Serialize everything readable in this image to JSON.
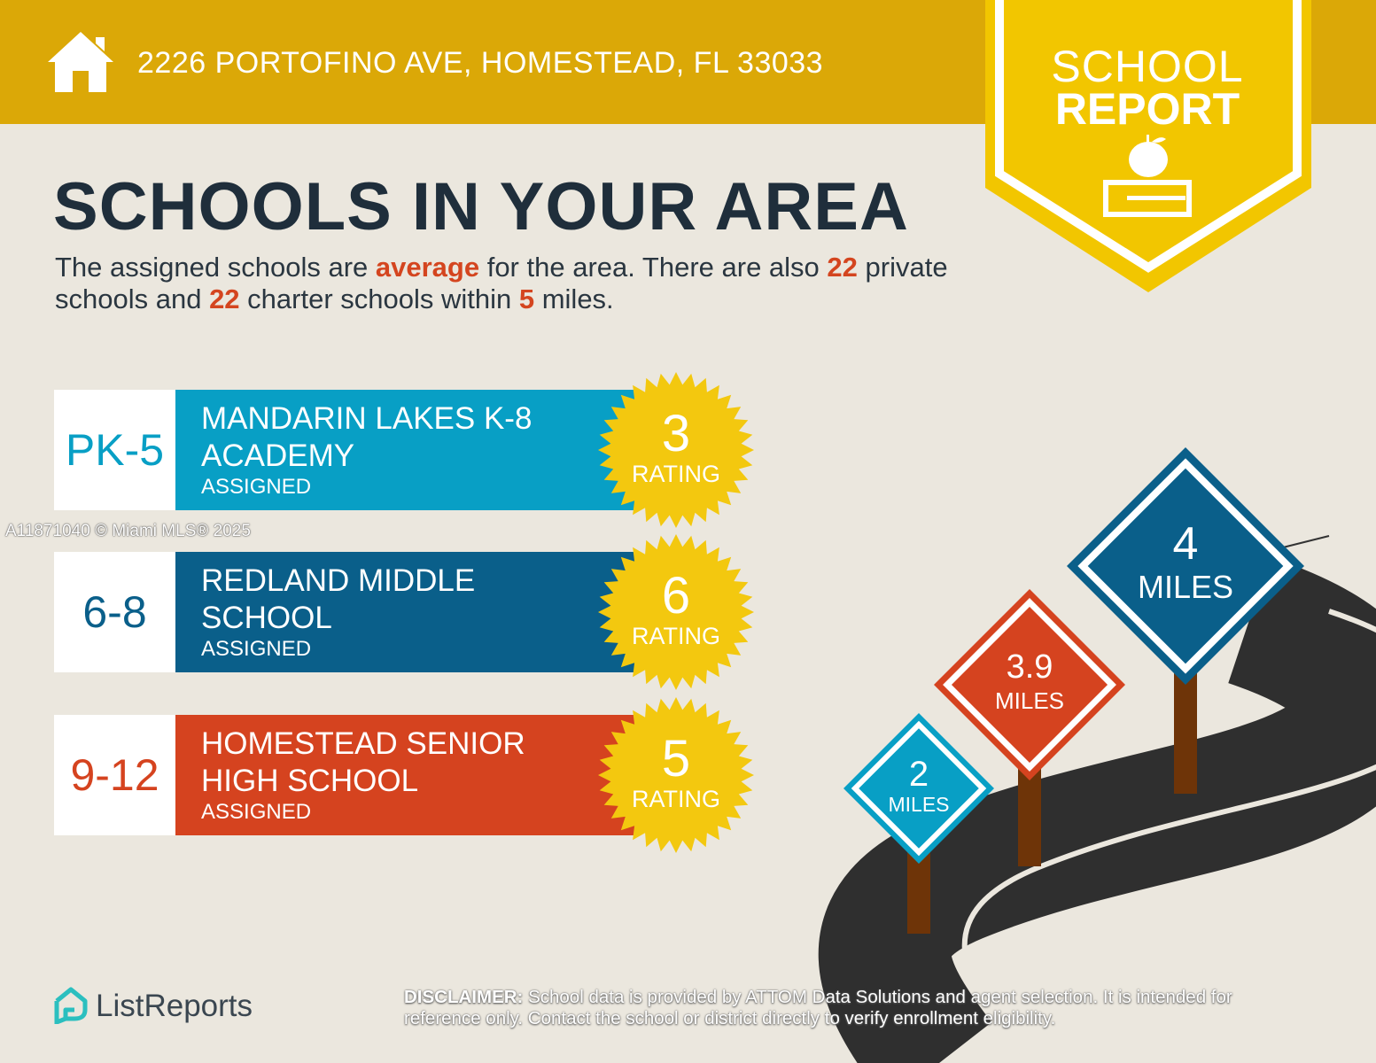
{
  "header": {
    "address": "2226 PORTOFINO AVE, HOMESTEAD, FL 33033",
    "icon": "home-icon",
    "badge_line1": "SCHOOL",
    "badge_line2": "REPORT",
    "badge_icon": "apple-on-book-icon"
  },
  "title": "SCHOOLS IN YOUR AREA",
  "summary": {
    "p1": "The assigned schools are ",
    "quality": "average",
    "p2": " for the area. There are also ",
    "private_count": "22",
    "p3": " private schools and ",
    "charter_count": "22",
    "p4": " charter schools within ",
    "radius": "5",
    "p5": " miles."
  },
  "schools": [
    {
      "grade": "PK-5",
      "name_line1": "MANDARIN LAKES K-8",
      "name_line2": "ACADEMY",
      "status": "ASSIGNED",
      "rating": "3",
      "rating_label": "RATING",
      "color": "#089fc5"
    },
    {
      "grade": "6-8",
      "name_line1": "REDLAND MIDDLE",
      "name_line2": "SCHOOL",
      "status": "ASSIGNED",
      "rating": "6",
      "rating_label": "RATING",
      "color": "#0a5f8a"
    },
    {
      "grade": "9-12",
      "name_line1": "HOMESTEAD SENIOR",
      "name_line2": "HIGH SCHOOL",
      "status": "ASSIGNED",
      "rating": "5",
      "rating_label": "RATING",
      "color": "#d5431f"
    }
  ],
  "signs": [
    {
      "value": "2",
      "unit": "MILES",
      "color": "#089fc5"
    },
    {
      "value": "3.9",
      "unit": "MILES",
      "color": "#d5431f"
    },
    {
      "value": "4",
      "unit": "MILES",
      "color": "#0a5f8a"
    }
  ],
  "watermark": "A11871040 © Miami MLS® 2025",
  "footer": {
    "brand": "ListReports",
    "disclaimer_label": "DISCLAIMER:",
    "disclaimer_text": " School data is provided by ATTOM Data Solutions and agent selection. It is intended for reference only. Contact the school or district directly to verify enrollment eligibility."
  },
  "colors": {
    "header": "#dba807",
    "badge": "#f2c600",
    "accent": "#d4451f",
    "star": "#f3c80f",
    "title": "#1f2e3b"
  }
}
